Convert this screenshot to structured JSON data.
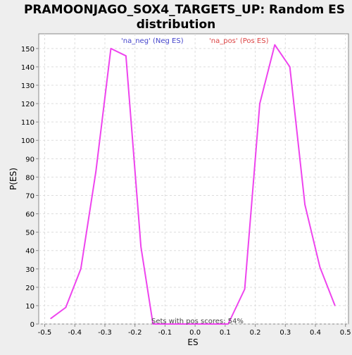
{
  "chart_data": {
    "type": "line",
    "title": "PRAMOONJAGO_SOX4_TARGETS_UP: Random ES distribution",
    "title_lines": [
      "PRAMOONJAGO_SOX4_TARGETS_UP: Random ES",
      "distribution"
    ],
    "xlabel": "ES",
    "ylabel": "P(ES)",
    "xlim": [
      -0.52,
      0.51
    ],
    "ylim": [
      0,
      158
    ],
    "x_ticks": [
      -0.5,
      -0.4,
      -0.3,
      -0.2,
      -0.1,
      0.0,
      0.1,
      0.2,
      0.3,
      0.4,
      0.5
    ],
    "x_tick_labels": [
      "-0.5",
      "-0.4",
      "-0.3",
      "-0.2",
      "-0.1",
      "0.0",
      "0.1",
      "0.2",
      "0.3",
      "0.4",
      "0.5"
    ],
    "y_ticks": [
      0,
      10,
      20,
      30,
      40,
      50,
      60,
      70,
      80,
      90,
      100,
      110,
      120,
      130,
      140,
      150
    ],
    "grid": true,
    "legend": [
      {
        "label": "'na_neg' (Neg ES)",
        "color": "#4444cc"
      },
      {
        "label": "'na_pos' (Pos ES)",
        "color": "#dd4444"
      }
    ],
    "annotation": "Sets with pos scores: 54%",
    "series": [
      {
        "color": "#ee44ee",
        "x": [
          -0.48,
          -0.43,
          -0.38,
          -0.33,
          -0.28,
          -0.23,
          -0.18,
          -0.14,
          -0.09,
          -0.04,
          0.01,
          0.06,
          0.11,
          0.165,
          0.215,
          0.265,
          0.315,
          0.365,
          0.415,
          0.465
        ],
        "y": [
          3,
          9,
          30,
          83,
          150,
          146,
          42,
          0,
          0,
          0,
          0,
          0,
          0,
          19,
          120,
          152,
          140,
          65,
          31,
          10
        ]
      }
    ]
  },
  "colors": {
    "background": "#eeeeee",
    "plot_background": "#ffffff",
    "grid": "#dddddd",
    "axis": "#888888",
    "line": "#ee44ee"
  }
}
